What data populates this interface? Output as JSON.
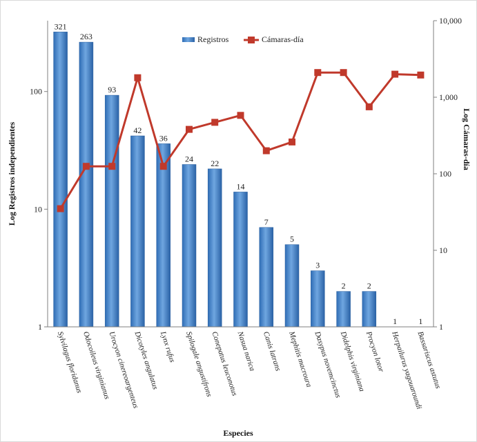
{
  "chart_data": {
    "type": "bar+line",
    "title": "",
    "xlabel": "Especies",
    "ylabel_left": "Log Registros independientes",
    "ylabel_right": "Log Cámaras-día",
    "categories": [
      "Sylvilagus floridanus",
      "Odocoileus virginianus",
      "Urocyon cinereoargenteus",
      "Dicotyles angulatus",
      "Lynx rufus",
      "Spilogale angustifrons",
      "Conepatus leuconotus",
      "Nasua narica",
      "Canis latrans",
      "Mephitis macroura",
      "Dasypus novemcinctus",
      "Didelphis virginiana",
      "Procyon lotor",
      "Herpailurus yagouaroundi",
      "Bassariscus astutus"
    ],
    "series": [
      {
        "name": "Registros",
        "type": "bar",
        "axis": "left",
        "color": "#4a86c8",
        "values": [
          321,
          263,
          93,
          42,
          36,
          24,
          22,
          14,
          7,
          5,
          3,
          2,
          2,
          1,
          1
        ],
        "labels": [
          "321",
          "263",
          "93",
          "42",
          "36",
          "24",
          "22",
          "14",
          "7",
          "5",
          "3",
          "2",
          "2",
          "1",
          "1"
        ]
      },
      {
        "name": "Cámaras-día",
        "type": "line",
        "axis": "right",
        "color": "#c0392b",
        "values": [
          35,
          125,
          125,
          1800,
          125,
          380,
          470,
          580,
          200,
          260,
          2100,
          2100,
          750,
          2000,
          1950
        ]
      }
    ],
    "left_axis": {
      "scale": "log",
      "range": [
        1,
        400
      ],
      "ticks": [
        1,
        10,
        100
      ],
      "tick_labels": [
        "1",
        "10",
        "100"
      ]
    },
    "right_axis": {
      "scale": "log",
      "range": [
        1,
        10000
      ],
      "ticks": [
        1,
        10,
        100,
        1000,
        10000
      ],
      "tick_labels": [
        "1",
        "10",
        "100",
        "1,000",
        "10,000"
      ]
    },
    "grid": false,
    "legend_position": "top-center"
  }
}
